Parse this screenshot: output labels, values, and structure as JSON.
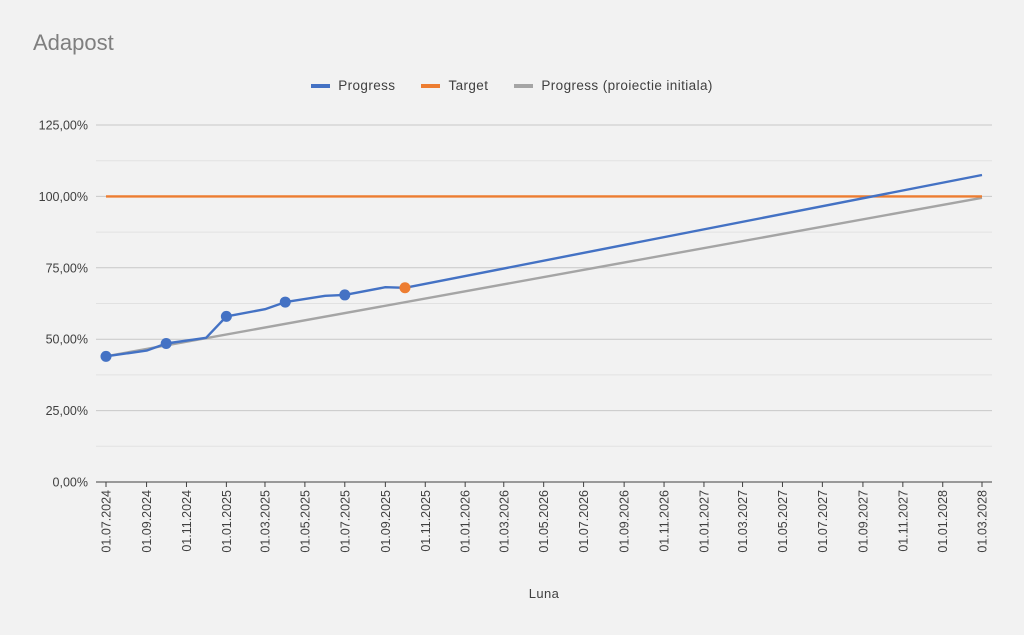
{
  "chart_data": {
    "type": "line",
    "title": "Adapost",
    "xlabel": "Luna",
    "ylabel": "",
    "ylim": [
      0,
      1.25
    ],
    "y_ticks": [
      {
        "value": 0,
        "label": "0,00%"
      },
      {
        "value": 0.25,
        "label": "25,00%"
      },
      {
        "value": 0.5,
        "label": "50,00%"
      },
      {
        "value": 0.75,
        "label": "75,00%"
      },
      {
        "value": 1.0,
        "label": "100,00%"
      },
      {
        "value": 1.25,
        "label": "125,00%"
      }
    ],
    "x_ticks": [
      "01.07.2024",
      "01.09.2024",
      "01.11.2024",
      "01.01.2025",
      "01.03.2025",
      "01.05.2025",
      "01.07.2025",
      "01.09.2025",
      "01.11.2025",
      "01.01.2026",
      "01.03.2026",
      "01.05.2026",
      "01.07.2026",
      "01.09.2026",
      "01.11.2026",
      "01.01.2027",
      "01.03.2027",
      "01.05.2027",
      "01.07.2027",
      "01.09.2027",
      "01.11.2027",
      "01.01.2028",
      "01.03.2028"
    ],
    "x_range": [
      "01.07.2024",
      "01.03.2028"
    ],
    "gridlines": true,
    "legend_position": "top",
    "series": [
      {
        "name": "Progress",
        "color": "#4472c4",
        "points": [
          {
            "x": "01.07.2024",
            "y": 0.44,
            "marker": true
          },
          {
            "x": "01.09.2024",
            "y": 0.46
          },
          {
            "x": "01.10.2024",
            "y": 0.485,
            "marker": true
          },
          {
            "x": "01.12.2024",
            "y": 0.505
          },
          {
            "x": "01.01.2025",
            "y": 0.58,
            "marker": true
          },
          {
            "x": "01.03.2025",
            "y": 0.605
          },
          {
            "x": "01.04.2025",
            "y": 0.63,
            "marker": true
          },
          {
            "x": "01.06.2025",
            "y": 0.652
          },
          {
            "x": "01.07.2025",
            "y": 0.655,
            "marker": true
          },
          {
            "x": "01.09.2025",
            "y": 0.682
          },
          {
            "x": "01.10.2025",
            "y": 0.68
          },
          {
            "x": "01.03.2028",
            "y": 1.075
          }
        ]
      },
      {
        "name": "Target",
        "color": "#ed7d31",
        "points": [
          {
            "x": "01.07.2024",
            "y": 1.0
          },
          {
            "x": "01.03.2028",
            "y": 1.0
          }
        ]
      },
      {
        "name": "Progress (proiectie initiala)",
        "color": "#a5a5a5",
        "points": [
          {
            "x": "01.07.2024",
            "y": 0.44
          },
          {
            "x": "01.03.2028",
            "y": 0.995
          }
        ]
      }
    ],
    "highlight_point": {
      "x": "01.10.2025",
      "y": 0.68,
      "color": "#ed7d31"
    }
  }
}
